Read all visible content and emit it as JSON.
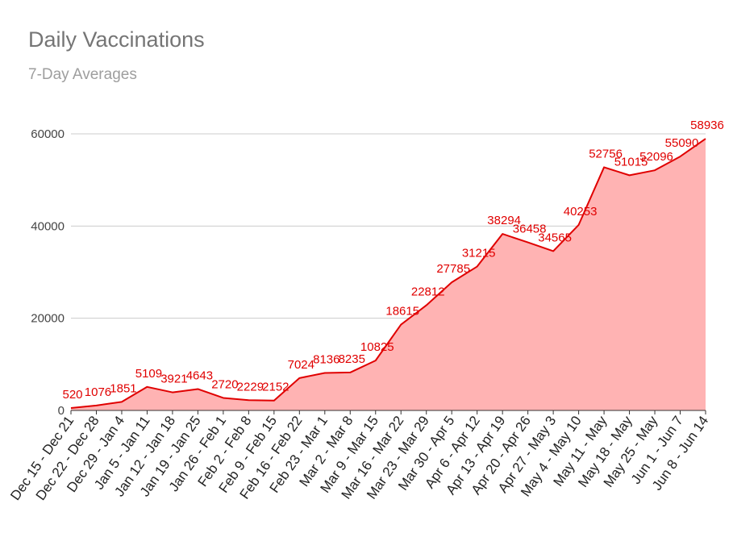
{
  "chart_data": {
    "type": "area",
    "title": "Daily Vaccinations",
    "subtitle": "7-Day Averages",
    "xlabel": "",
    "ylabel": "",
    "ylim": [
      0,
      60000
    ],
    "yticks": [
      "0",
      "20000",
      "40000",
      "60000"
    ],
    "grid": true,
    "legend": "none",
    "colors": {
      "line": "#e00000",
      "fill": "#ffb3b3",
      "label": "#e00000"
    },
    "categories": [
      "Dec 15 - Dec 21",
      "Dec 22 - Dec 28",
      "Dec 29 - Jan 4",
      "Jan 5 - Jan 11",
      "Jan 12 - Jan 18",
      "Jan 19 - Jan 25",
      "Jan 26 - Feb 1",
      "Feb 2 - Feb 8",
      "Feb 9 - Feb 15",
      "Feb 16 - Feb 22",
      "Feb 23 - Mar 1",
      "Mar 2 - Mar 8",
      "Mar 9 - Mar 15",
      "Mar 16 - Mar 22",
      "Mar 23 - Mar 29",
      "Mar 30 - Apr 5",
      "Apr 6 - Apr 12",
      "Apr 13 - Apr 19",
      "Apr 20 - Apr 26",
      "Apr 27 - May 3",
      "May 4 - May 10",
      "May 11 - May",
      "May 18 - May",
      "May 25 - May",
      "Jun 1 - Jun 7",
      "Jun 8 - Jun 14"
    ],
    "values": [
      520,
      1076,
      1851,
      5109,
      3921,
      4643,
      2720,
      2229,
      2152,
      7024,
      8136,
      8235,
      10825,
      18615,
      22812,
      27785,
      31215,
      38294,
      36458,
      34565,
      40253,
      52756,
      51015,
      52096,
      55090,
      58936
    ]
  }
}
